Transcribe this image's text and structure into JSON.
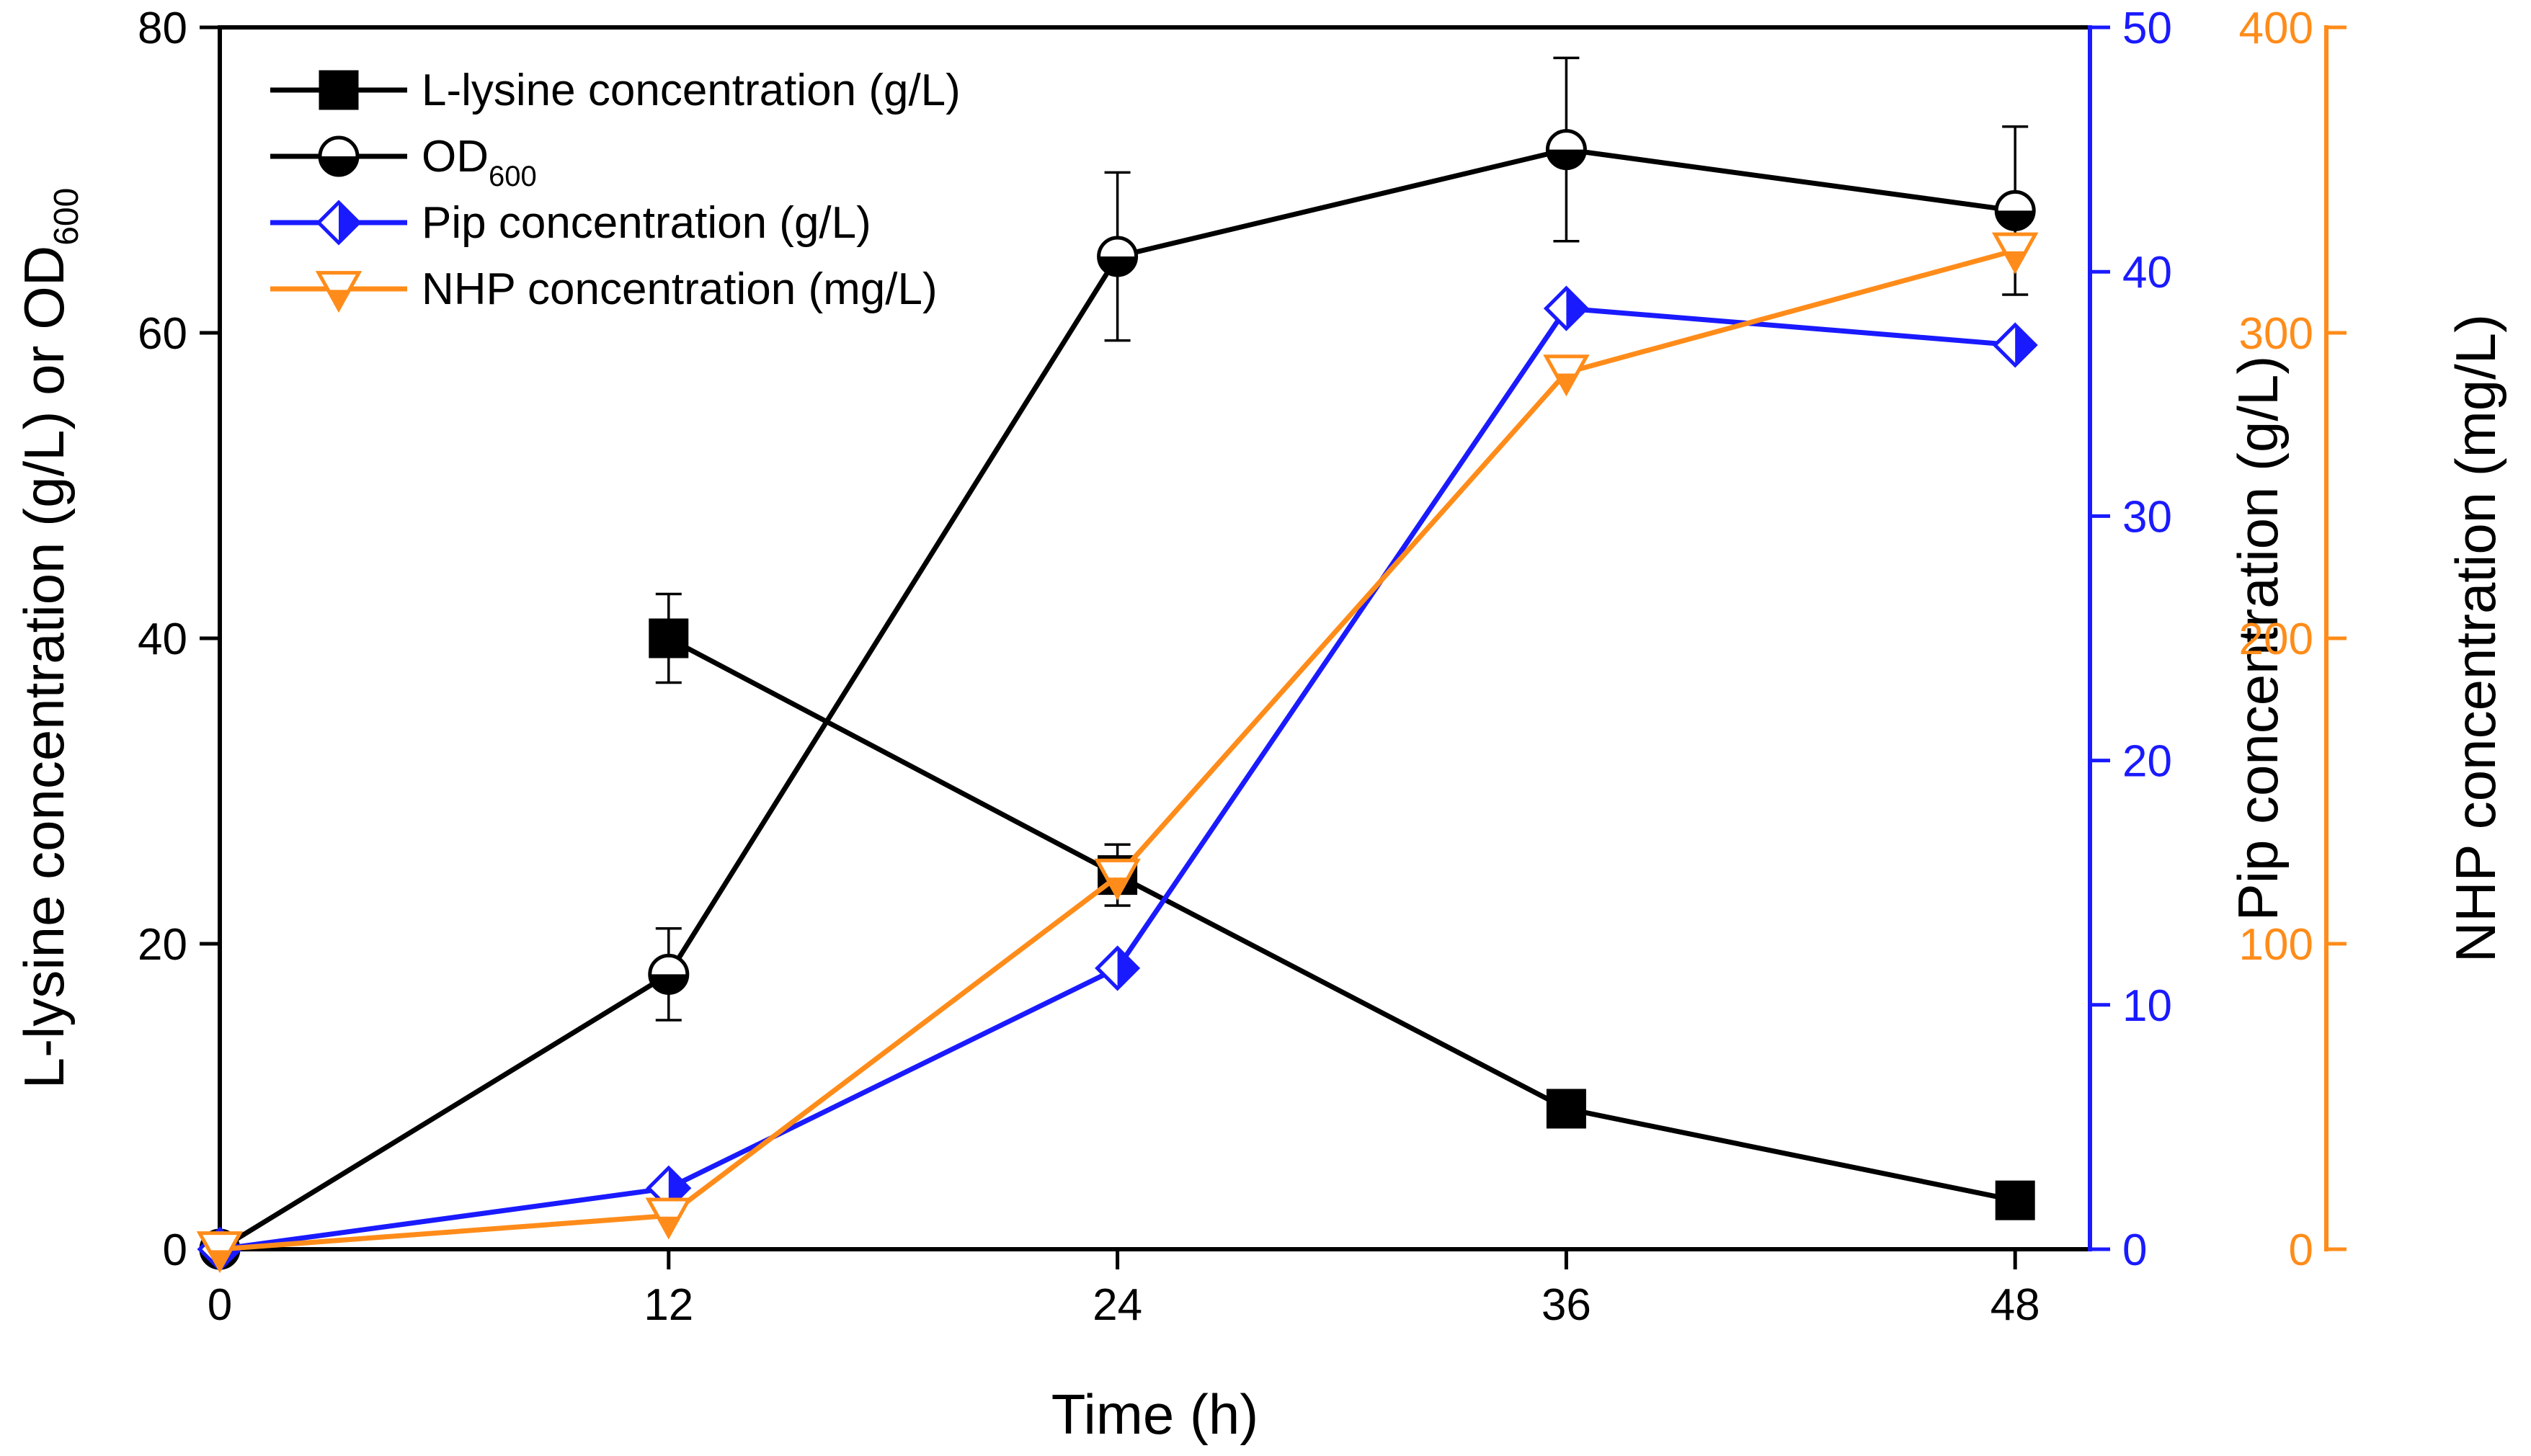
{
  "chart_data": {
    "type": "line",
    "title": "",
    "xlabel": "Time (h)",
    "x": [
      0,
      12,
      24,
      36,
      48
    ],
    "x_ticks": [
      "0",
      "12",
      "24",
      "36",
      "48"
    ],
    "xlim": [
      0,
      50
    ],
    "y_axes": {
      "left": {
        "label_parts": [
          "L-lysine concentration (g/L) or OD",
          "600"
        ],
        "ylim": [
          0,
          80
        ],
        "ticks": [
          "0",
          "20",
          "40",
          "60",
          "80"
        ],
        "color": "#000000"
      },
      "right1": {
        "label": "Pip concentration (g/L)",
        "ylim": [
          0,
          50
        ],
        "ticks": [
          "0",
          "10",
          "20",
          "30",
          "40",
          "50"
        ],
        "color": "#1a1aff",
        "label_color": "#000000"
      },
      "right2": {
        "label": "NHP concentration (mg/L)",
        "ylim": [
          0,
          400
        ],
        "ticks": [
          "0",
          "100",
          "200",
          "300",
          "400"
        ],
        "color": "#ff8c1a",
        "label_color": "#000000"
      }
    },
    "series": [
      {
        "name": "L-lysine concentration (g/L)",
        "axis": "left",
        "color": "#000000",
        "marker": "filled-square",
        "x": [
          12,
          24,
          36,
          48
        ],
        "values": [
          40,
          24.5,
          9.2,
          3.2
        ],
        "errors": [
          2.9,
          2.0,
          0,
          0
        ]
      },
      {
        "name": "OD",
        "name_sub": "600",
        "axis": "left",
        "color": "#000000",
        "marker": "half-filled-circle",
        "x": [
          0,
          12,
          24,
          36,
          48
        ],
        "values": [
          0,
          18,
          65,
          72,
          68
        ],
        "errors": [
          0,
          3,
          5.5,
          6,
          5.5
        ]
      },
      {
        "name": "Pip concentration (g/L)",
        "axis": "right1",
        "color": "#1a1aff",
        "marker": "half-filled-diamond",
        "x": [
          0,
          12,
          24,
          36,
          48
        ],
        "values": [
          0,
          2.5,
          11.5,
          38.5,
          37
        ],
        "errors": [
          0,
          0,
          0,
          0,
          0
        ]
      },
      {
        "name": "NHP concentration (mg/L)",
        "axis": "right2",
        "color": "#ff8c1a",
        "marker": "half-filled-triangle-down",
        "x": [
          0,
          12,
          24,
          36,
          48
        ],
        "values": [
          0,
          11,
          122,
          287,
          327
        ],
        "errors": [
          0,
          0,
          0,
          0,
          0
        ]
      }
    ],
    "legend_position": "top-left"
  }
}
